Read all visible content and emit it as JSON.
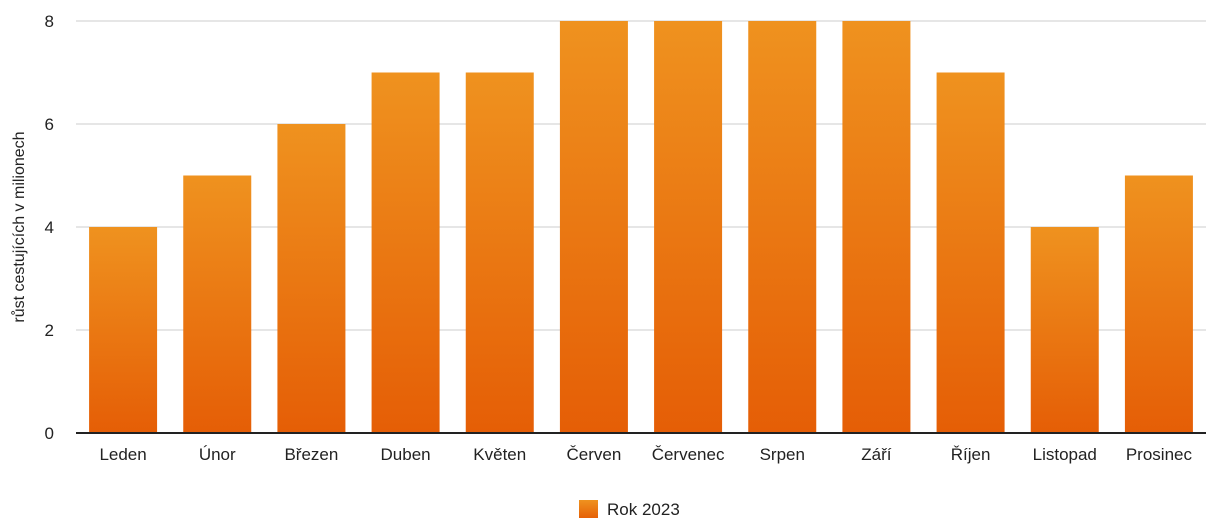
{
  "chart_data": {
    "type": "bar",
    "title": "",
    "xlabel": "",
    "ylabel": "růst cestujících v milionech",
    "categories": [
      "Leden",
      "Únor",
      "Březen",
      "Duben",
      "Květen",
      "Červen",
      "Červenec",
      "Srpen",
      "Září",
      "Říjen",
      "Listopad",
      "Prosinec"
    ],
    "series": [
      {
        "name": "Rok 2023",
        "values": [
          4,
          5,
          6,
          7,
          7,
          8,
          8,
          8,
          8,
          7,
          4,
          5
        ]
      }
    ],
    "ylim": [
      0,
      8
    ],
    "yticks": [
      0,
      2,
      4,
      6,
      8
    ],
    "grid": true,
    "legend_position": "bottom-center",
    "colors": {
      "bar_top": "#EF921F",
      "bar_bottom": "#E55E06",
      "grid": "#CCCCCC",
      "axis": "#222222"
    }
  }
}
